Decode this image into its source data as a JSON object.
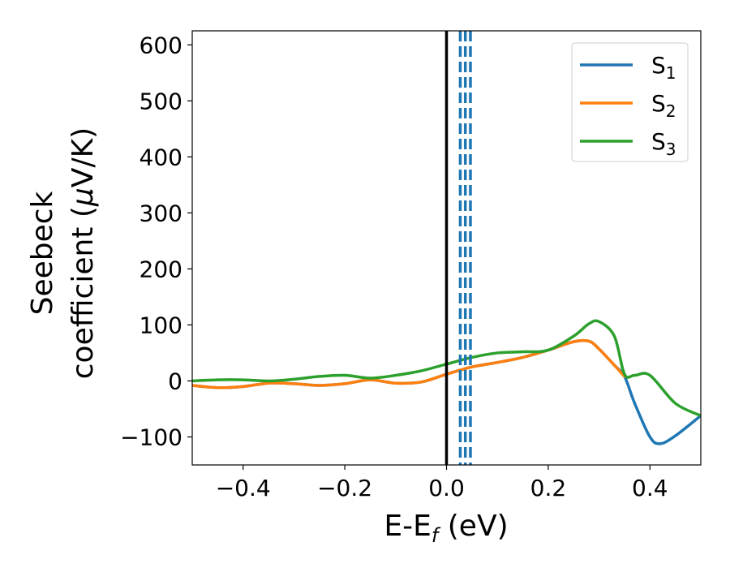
{
  "chart_data": {
    "type": "line",
    "title": "",
    "xlabel": {
      "main": "E-E",
      "sub": "f",
      "unit": " (eV)"
    },
    "ylabel": {
      "line1": "Seebeck",
      "line2_text": "coefficient  (",
      "line2_mu": "μ",
      "line2_unit": "V/K)"
    },
    "xlim": [
      -0.5,
      0.5
    ],
    "ylim": [
      -150,
      625
    ],
    "xticks": [
      -0.4,
      -0.2,
      0.0,
      0.2,
      0.4
    ],
    "xtick_labels": [
      "−0.4",
      "−0.2",
      "0.0",
      "0.2",
      "0.4"
    ],
    "yticks": [
      -100,
      0,
      100,
      200,
      300,
      400,
      500,
      600
    ],
    "ytick_labels": [
      "−100",
      "0",
      "100",
      "200",
      "300",
      "400",
      "500",
      "600"
    ],
    "grid": false,
    "legend_position": "top-right",
    "vlines": [
      {
        "x": 0.0,
        "color": "#000000",
        "style": "solid"
      },
      {
        "x": 0.027,
        "color": "#1f77b4",
        "style": "dashed"
      },
      {
        "x": 0.037,
        "color": "#1f77b4",
        "style": "dashed"
      },
      {
        "x": 0.047,
        "color": "#1f77b4",
        "style": "dashed"
      }
    ],
    "series": [
      {
        "name": "S",
        "sub": "1",
        "color": "#1f77b4",
        "x": [
          -0.5,
          -0.45,
          -0.4,
          -0.35,
          -0.3,
          -0.25,
          -0.2,
          -0.15,
          -0.1,
          -0.05,
          0.0,
          0.05,
          0.1,
          0.15,
          0.2,
          0.25,
          0.28,
          0.3,
          0.33,
          0.35,
          0.37,
          0.4,
          0.42,
          0.45,
          0.5
        ],
        "y": [
          -8,
          -12,
          -10,
          -4,
          -5,
          -8,
          -5,
          2,
          -4,
          -2,
          12,
          25,
          33,
          42,
          55,
          70,
          71,
          57,
          28,
          8,
          -40,
          -100,
          -112,
          -98,
          -62
        ]
      },
      {
        "name": "S",
        "sub": "2",
        "color": "#ff7f0e",
        "x": [
          -0.5,
          -0.45,
          -0.4,
          -0.35,
          -0.3,
          -0.25,
          -0.2,
          -0.15,
          -0.1,
          -0.05,
          0.0,
          0.05,
          0.1,
          0.15,
          0.2,
          0.25,
          0.28,
          0.3,
          0.33,
          0.35
        ],
        "y": [
          -8,
          -12,
          -10,
          -4,
          -5,
          -8,
          -5,
          2,
          -4,
          -2,
          12,
          25,
          33,
          42,
          55,
          70,
          71,
          57,
          28,
          8
        ]
      },
      {
        "name": "S",
        "sub": "3",
        "color": "#2ca02c",
        "x": [
          -0.5,
          -0.45,
          -0.4,
          -0.35,
          -0.3,
          -0.25,
          -0.2,
          -0.15,
          -0.1,
          -0.05,
          0.0,
          0.05,
          0.1,
          0.15,
          0.2,
          0.25,
          0.28,
          0.3,
          0.33,
          0.35,
          0.37,
          0.4,
          0.45,
          0.5
        ],
        "y": [
          0,
          2,
          2,
          0,
          3,
          8,
          10,
          5,
          10,
          18,
          30,
          42,
          50,
          52,
          55,
          80,
          102,
          106,
          80,
          12,
          10,
          10,
          -40,
          -62
        ]
      }
    ]
  }
}
